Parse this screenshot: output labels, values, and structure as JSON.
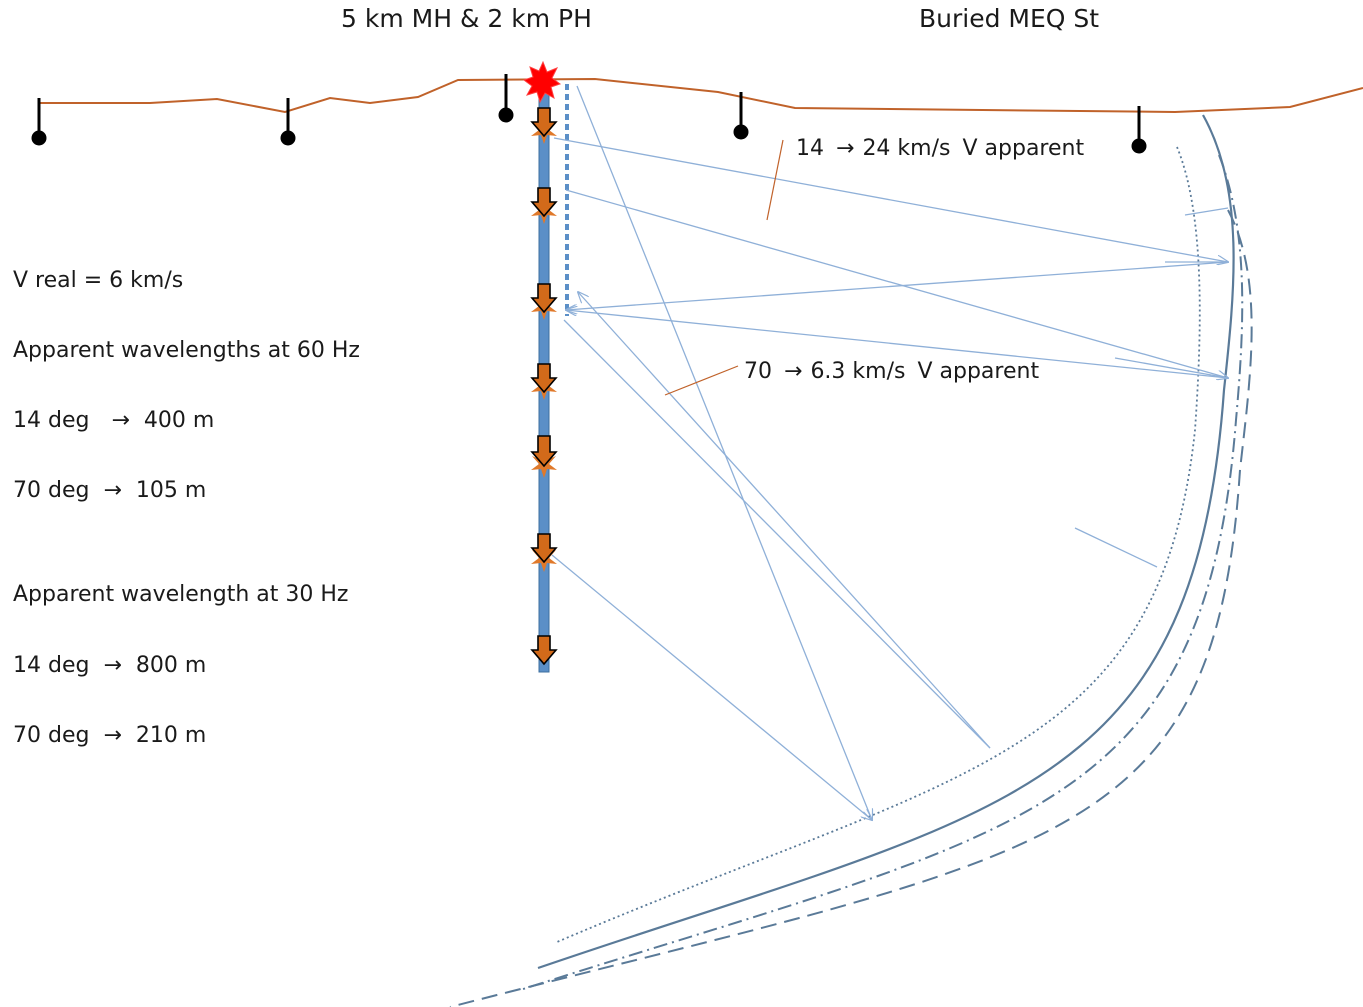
{
  "titles": {
    "left": "5 km MH & 2 km PH",
    "right": "Buried MEQ St"
  },
  "annotations": {
    "upper": {
      "from": "14",
      "arrow": "→",
      "to": "24 km/s",
      "suffix": "V apparent"
    },
    "lower": {
      "from": "70",
      "arrow": "→",
      "to": "6.3 km/s",
      "suffix": "V apparent"
    }
  },
  "notes": {
    "v_real": "V real = 6 km/s",
    "heading_60": "Apparent wavelengths at 60 Hz",
    "row_60_a": {
      "angle": "14 deg",
      "arrow": "→",
      "value": "400 m"
    },
    "row_60_b": {
      "angle": "70 deg",
      "arrow": "→",
      "value": "105 m"
    },
    "heading_30": "Apparent wavelength at 30 Hz",
    "row_30_a": {
      "angle": "14 deg",
      "arrow": "→",
      "value": "800 m"
    },
    "row_30_b": {
      "angle": "70 deg",
      "arrow": "→",
      "value": "210 m"
    }
  },
  "colors": {
    "surface": "#c0622a",
    "well": "#5b8fc7",
    "ray": "#8fb0d8",
    "reflector": "#5a7a98",
    "source": "#ff0000",
    "receiver": "#d26a1a",
    "station": "#000000"
  }
}
